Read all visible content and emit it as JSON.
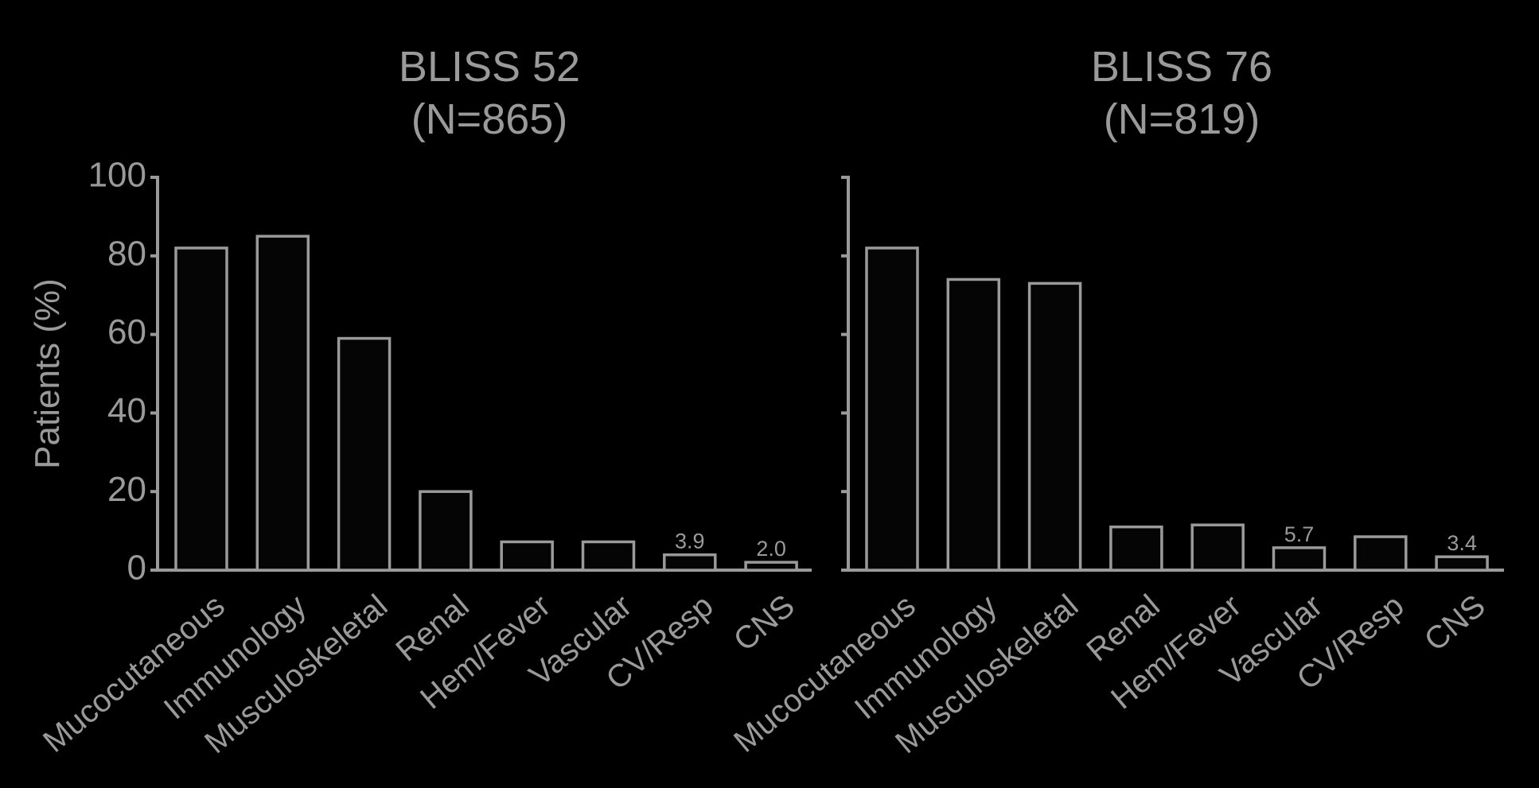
{
  "chart_data": [
    {
      "type": "bar",
      "title": [
        "BLISS 52",
        "(N=865)"
      ],
      "ylabel": "Patients (%)",
      "ylim": [
        0,
        100
      ],
      "yticks": [
        0,
        20,
        40,
        60,
        80,
        100
      ],
      "show_tick_labels": true,
      "categories": [
        "Mucocutaneous",
        "Immunology",
        "Musculoskeletal",
        "Renal",
        "Hem/Fever",
        "Vascular",
        "CV/Resp",
        "CNS"
      ],
      "values": [
        82,
        85,
        59,
        20,
        7.2,
        7.2,
        3.9,
        2.0
      ],
      "data_labels": [
        "",
        "",
        "",
        "",
        "",
        "",
        "3.9",
        "2.0"
      ]
    },
    {
      "type": "bar",
      "title": [
        "BLISS 76",
        "(N=819)"
      ],
      "ylabel": "",
      "ylim": [
        0,
        100
      ],
      "yticks": [
        0,
        20,
        40,
        60,
        80,
        100
      ],
      "show_tick_labels": false,
      "categories": [
        "Mucocutaneous",
        "Immunology",
        "Musculoskeletal",
        "Renal",
        "Hem/Fever",
        "Vascular",
        "CV/Resp",
        "CNS"
      ],
      "values": [
        82,
        74,
        73,
        11,
        11.5,
        5.7,
        8.5,
        3.4
      ],
      "data_labels": [
        "",
        "",
        "",
        "",
        "",
        "5.7",
        "",
        "3.4"
      ]
    }
  ]
}
